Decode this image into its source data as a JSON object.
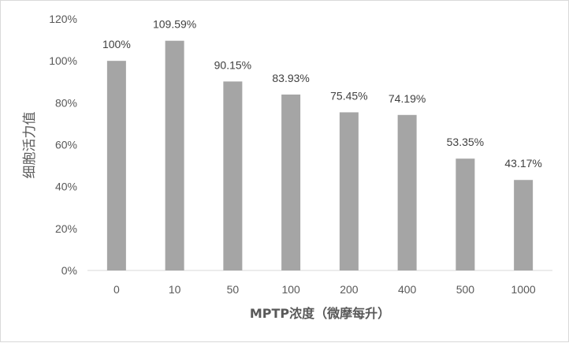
{
  "chart_data": {
    "type": "bar",
    "title": "",
    "xlabel": "MPTP浓度（微摩每升）",
    "ylabel": "细胞活力值",
    "categories": [
      "0",
      "10",
      "50",
      "100",
      "200",
      "400",
      "500",
      "1000"
    ],
    "values": [
      100,
      109.59,
      90.15,
      83.93,
      75.45,
      74.19,
      53.35,
      43.17
    ],
    "data_labels": [
      "100%",
      "109.59%",
      "90.15%",
      "83.93%",
      "75.45%",
      "74.19%",
      "53.35%",
      "43.17%"
    ],
    "ylim": [
      0,
      120
    ],
    "yticks": [
      0,
      20,
      40,
      60,
      80,
      100,
      120
    ],
    "ytick_labels": [
      "0%",
      "20%",
      "40%",
      "60%",
      "80%",
      "100%",
      "120%"
    ],
    "grid": false,
    "legend": "none",
    "bar_color": "#a5a5a5"
  }
}
